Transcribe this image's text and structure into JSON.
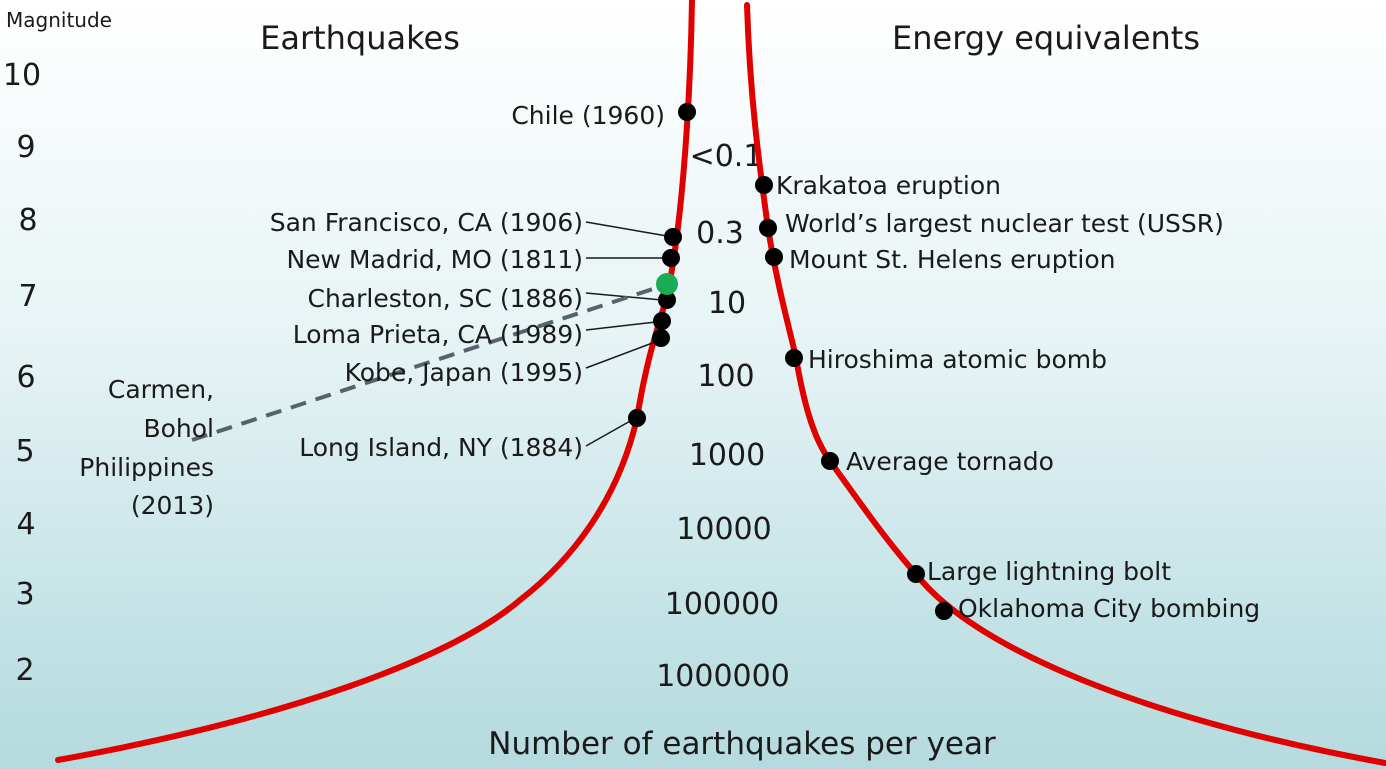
{
  "magnitude_header": "Magnitude",
  "left_title": "Earthquakes",
  "right_title": "Energy equivalents",
  "x_caption": "Number of earthquakes per year",
  "curve_color": "#e00000",
  "highlight_color": "#1aab55",
  "magnitudes": [
    "10",
    "9",
    "8",
    "7",
    "6",
    "5",
    "4",
    "3",
    "2"
  ],
  "frequencies": [
    "<0.1",
    "0.3",
    "10",
    "100",
    "1000",
    "10000",
    "100000",
    "1000000"
  ],
  "earthquakes": [
    {
      "label": "Chile (1960)"
    },
    {
      "label": "San Francisco, CA (1906)"
    },
    {
      "label": "New Madrid, MO (1811)"
    },
    {
      "label": "Charleston, SC (1886)"
    },
    {
      "label": "Loma Prieta, CA (1989)"
    },
    {
      "label": "Kobe, Japan (1995)"
    },
    {
      "label": "Long Island, NY (1884)"
    }
  ],
  "highlight_quake": {
    "lines": [
      "Carmen,",
      "Bohol",
      "Philippines",
      "(2013)"
    ]
  },
  "energy_equivalents": [
    {
      "label": "Krakatoa eruption"
    },
    {
      "label": "World’s largest nuclear test (USSR)"
    },
    {
      "label": "Mount St. Helens eruption"
    },
    {
      "label": "Hiroshima atomic bomb"
    },
    {
      "label": "Average tornado"
    },
    {
      "label": "Large lightning bolt"
    },
    {
      "label": "Oklahoma City bombing"
    }
  ]
}
